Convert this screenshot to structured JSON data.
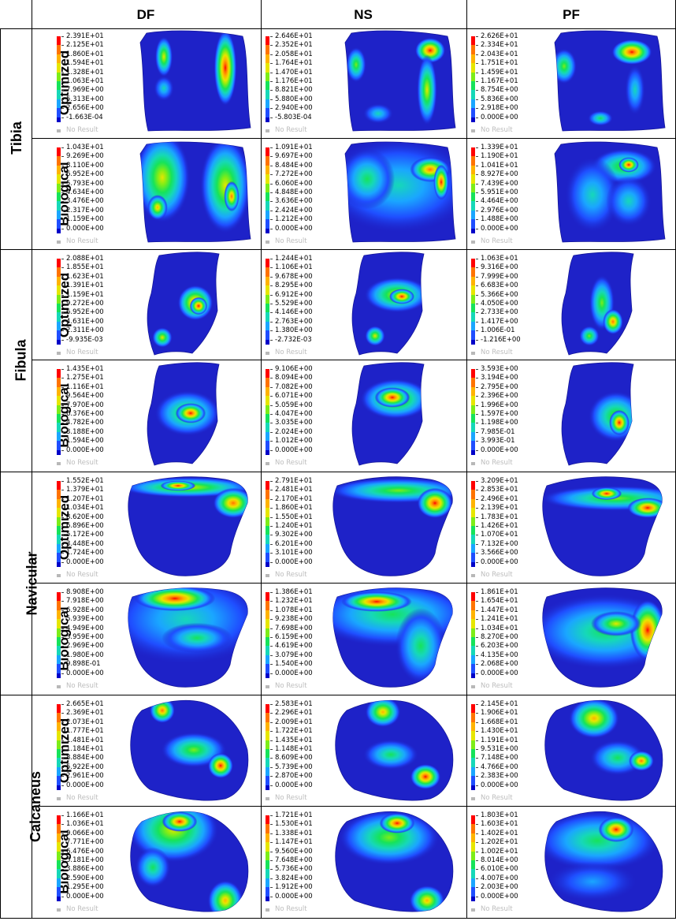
{
  "columns": [
    "DF",
    "NS",
    "PF"
  ],
  "colors": {
    "body": "#1e22c8",
    "scale": [
      "#ff0000",
      "#ff7300",
      "#ffb300",
      "#e6e600",
      "#7ded18",
      "#16e35a",
      "#16d8b8",
      "#1aa6ff",
      "#1f4eff",
      "#0000c8"
    ],
    "no_result": "#b8b8b8"
  },
  "no_result_label": "No Result",
  "bones": [
    {
      "name": "Tibia",
      "rows": [
        {
          "label": "Optimized",
          "legends": [
            [
              "2.391E+01",
              "2.125E+01",
              "1.860E+01",
              "1.594E+01",
              "1.328E+01",
              "1.063E+01",
              "7.969E+00",
              "5.313E+00",
              "2.656E+00",
              "-1.663E-04"
            ],
            [
              "2.646E+01",
              "2.352E+01",
              "2.058E+01",
              "1.764E+01",
              "1.470E+01",
              "1.176E+01",
              "8.821E+00",
              "5.880E+00",
              "2.940E+00",
              "-5.803E-04"
            ],
            [
              "2.626E+01",
              "2.334E+01",
              "2.043E+01",
              "1.751E+01",
              "1.459E+01",
              "1.167E+01",
              "8.754E+00",
              "5.836E+00",
              "2.918E+00",
              "0.000E+00"
            ]
          ]
        },
        {
          "label": "Biological",
          "legends": [
            [
              "1.043E+01",
              "9.269E+00",
              "8.110E+00",
              "6.952E+00",
              "5.793E+00",
              "4.634E+00",
              "3.476E+00",
              "2.317E+00",
              "1.159E+00",
              "0.000E+00"
            ],
            [
              "1.091E+01",
              "9.697E+00",
              "8.484E+00",
              "7.272E+00",
              "6.060E+00",
              "4.848E+00",
              "3.636E+00",
              "2.424E+00",
              "1.212E+00",
              "0.000E+00"
            ],
            [
              "1.339E+01",
              "1.190E+01",
              "1.041E+01",
              "8.927E+00",
              "7.439E+00",
              "5.951E+00",
              "4.464E+00",
              "2.976E+00",
              "1.488E+00",
              "0.000E+00"
            ]
          ]
        }
      ]
    },
    {
      "name": "Fibula",
      "rows": [
        {
          "label": "Optimized",
          "legends": [
            [
              "2.088E+01",
              "1.855E+01",
              "1.623E+01",
              "1.391E+01",
              "1.159E+01",
              "9.272E+00",
              "6.952E+00",
              "4.631E+00",
              "2.311E+00",
              "-9.935E-03"
            ],
            [
              "1.244E+01",
              "1.106E+01",
              "9.678E+00",
              "8.295E+00",
              "6.912E+00",
              "5.529E+00",
              "4.146E+00",
              "2.763E+00",
              "1.380E+00",
              "-2.732E-03"
            ],
            [
              "1.063E+01",
              "9.316E+00",
              "7.999E+00",
              "6.683E+00",
              "5.366E+00",
              "4.050E+00",
              "2.733E+00",
              "1.417E+00",
              "1.006E-01",
              "-1.216E+00"
            ]
          ]
        },
        {
          "label": "Biological",
          "legends": [
            [
              "1.435E+01",
              "1.275E+01",
              "1.116E+01",
              "9.564E+00",
              "7.970E+00",
              "6.376E+00",
              "4.782E+00",
              "3.188E+00",
              "1.594E+00",
              "0.000E+00"
            ],
            [
              "9.106E+00",
              "8.094E+00",
              "7.082E+00",
              "6.071E+00",
              "5.059E+00",
              "4.047E+00",
              "3.035E+00",
              "2.024E+00",
              "1.012E+00",
              "0.000E+00"
            ],
            [
              "3.593E+00",
              "3.194E+00",
              "2.795E+00",
              "2.396E+00",
              "1.996E+00",
              "1.597E+00",
              "1.198E+00",
              "7.985E-01",
              "3.993E-01",
              "0.000E+00"
            ]
          ]
        }
      ]
    },
    {
      "name": "Navicular",
      "rows": [
        {
          "label": "Optimized",
          "legends": [
            [
              "1.552E+01",
              "1.379E+01",
              "1.207E+01",
              "1.034E+01",
              "8.620E+00",
              "6.896E+00",
              "5.172E+00",
              "3.448E+00",
              "1.724E+00",
              "0.000E+00"
            ],
            [
              "2.791E+01",
              "2.481E+01",
              "2.170E+01",
              "1.860E+01",
              "1.550E+01",
              "1.240E+01",
              "9.302E+00",
              "6.201E+00",
              "3.101E+00",
              "0.000E+00"
            ],
            [
              "3.209E+01",
              "2.853E+01",
              "2.496E+01",
              "2.139E+01",
              "1.783E+01",
              "1.426E+01",
              "1.070E+01",
              "7.132E+00",
              "3.566E+00",
              "0.000E+00"
            ]
          ]
        },
        {
          "label": "Biological",
          "legends": [
            [
              "8.908E+00",
              "7.918E+00",
              "6.928E+00",
              "5.939E+00",
              "4.949E+00",
              "3.959E+00",
              "2.969E+00",
              "1.980E+00",
              "9.898E-01",
              "0.000E+00"
            ],
            [
              "1.386E+01",
              "1.232E+01",
              "1.078E+01",
              "9.238E+00",
              "7.698E+00",
              "6.159E+00",
              "4.619E+00",
              "3.079E+00",
              "1.540E+00",
              "0.000E+00"
            ],
            [
              "1.861E+01",
              "1.654E+01",
              "1.447E+01",
              "1.241E+01",
              "1.034E+01",
              "8.270E+00",
              "6.203E+00",
              "4.135E+00",
              "2.068E+00",
              "0.000E+00"
            ]
          ]
        }
      ]
    },
    {
      "name": "Calcaneus",
      "rows": [
        {
          "label": "Optimized",
          "legends": [
            [
              "2.665E+01",
              "2.369E+01",
              "2.073E+01",
              "1.777E+01",
              "1.481E+01",
              "1.184E+01",
              "8.884E+00",
              "5.922E+00",
              "2.961E+00",
              "0.000E+00"
            ],
            [
              "2.583E+01",
              "2.296E+01",
              "2.009E+01",
              "1.722E+01",
              "1.435E+01",
              "1.148E+01",
              "8.609E+00",
              "5.739E+00",
              "2.870E+00",
              "0.000E+00"
            ],
            [
              "2.145E+01",
              "1.906E+01",
              "1.668E+01",
              "1.430E+01",
              "1.191E+01",
              "9.531E+00",
              "7.148E+00",
              "4.766E+00",
              "2.383E+00",
              "0.000E+00"
            ]
          ]
        },
        {
          "label": "Biological",
          "legends": [
            [
              "1.166E+01",
              "1.036E+01",
              "9.066E+00",
              "7.771E+00",
              "6.476E+00",
              "5.181E+00",
              "3.886E+00",
              "2.590E+00",
              "1.295E+00",
              "0.000E+00"
            ],
            [
              "1.721E+01",
              "1.530E+01",
              "1.338E+01",
              "1.147E+01",
              "9.560E+00",
              "7.648E+00",
              "5.736E+00",
              "3.824E+00",
              "1.912E+00",
              "0.000E+00"
            ],
            [
              "1.803E+01",
              "1.603E+01",
              "1.402E+01",
              "1.202E+01",
              "1.002E+01",
              "8.014E+00",
              "6.010E+00",
              "4.007E+00",
              "2.003E+00",
              "0.000E+00"
            ]
          ]
        }
      ]
    }
  ]
}
